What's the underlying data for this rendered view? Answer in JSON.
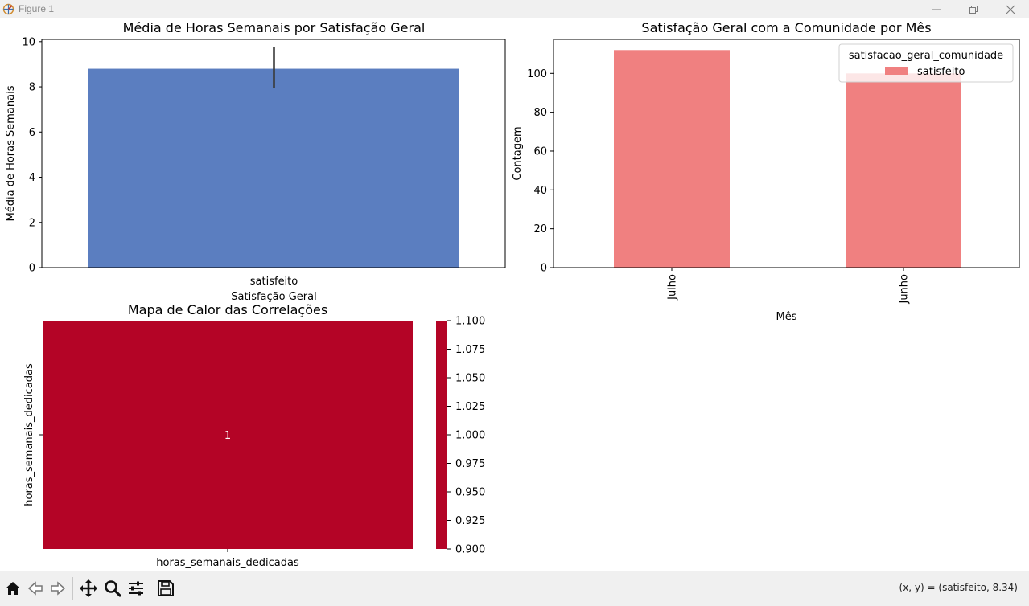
{
  "window": {
    "title": "Figure 1",
    "controls": [
      "minimize",
      "maximize",
      "close"
    ]
  },
  "toolbar": {
    "buttons": [
      "home-icon",
      "back-icon",
      "forward-icon",
      "pan-icon",
      "zoom-icon",
      "configure-subplots-icon",
      "save-icon"
    ],
    "coordinates": "(x, y) = (satisfeito, 8.34)"
  },
  "colors": {
    "bar_blue": "#5b7ec0",
    "bar_red": "#f08080",
    "heatmap_red": "#b40426"
  },
  "chart_data": [
    {
      "type": "bar",
      "title": "Média de Horas Semanais por Satisfação Geral",
      "xlabel": "Satisfação Geral",
      "ylabel": "Média de Horas Semanais",
      "categories": [
        "satisfeito"
      ],
      "values": [
        8.8
      ],
      "error": [
        [
          7.95,
          9.75
        ]
      ],
      "ylim": [
        0,
        10.1
      ],
      "yticks": [
        "0",
        "2",
        "4",
        "6",
        "8",
        "10"
      ]
    },
    {
      "type": "bar",
      "title": "Satisfação Geral com a Comunidade por Mês",
      "xlabel": "Mês",
      "ylabel": "Contagem",
      "categories": [
        "Julho",
        "Junho"
      ],
      "series": [
        {
          "name": "satisfeito",
          "values": [
            112,
            100
          ]
        }
      ],
      "legend_title": "satisfacao_geral_comunidade",
      "legend_position": "top-right",
      "ylim": [
        0,
        117.5
      ],
      "yticks": [
        "0",
        "20",
        "40",
        "60",
        "80",
        "100"
      ]
    },
    {
      "type": "heatmap",
      "title": "Mapa de Calor das Correlações",
      "xlabels": [
        "horas_semanais_dedicadas"
      ],
      "ylabels": [
        "horas_semanais_dedicadas"
      ],
      "values": [
        [
          1
        ]
      ],
      "annotations": [
        "1"
      ],
      "colorbar_range": [
        0.9,
        1.1
      ],
      "colorbar_ticks": [
        "0.900",
        "0.925",
        "0.950",
        "0.975",
        "1.000",
        "1.025",
        "1.050",
        "1.075",
        "1.100"
      ]
    }
  ]
}
